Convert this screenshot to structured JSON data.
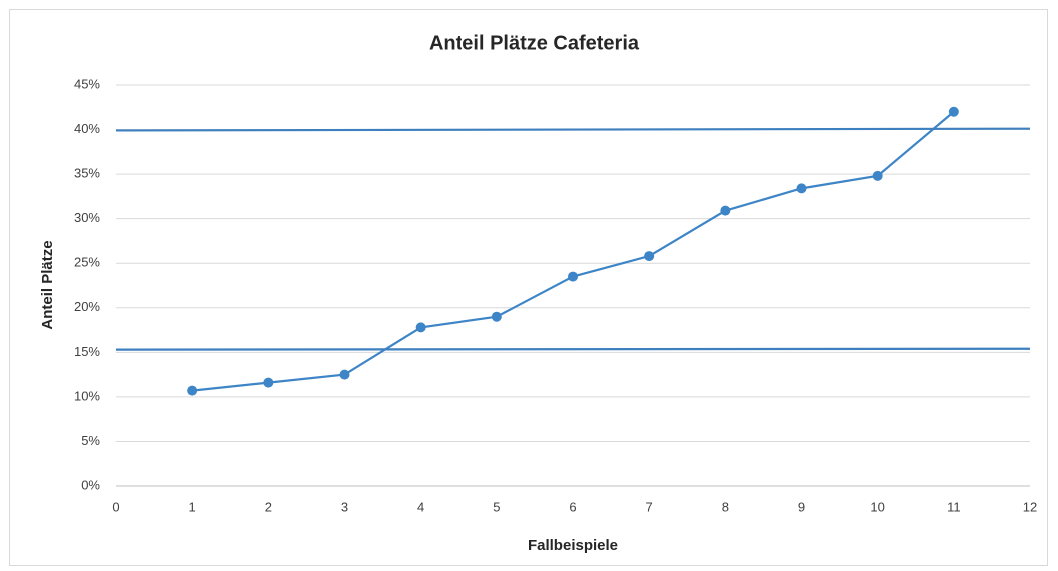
{
  "chart_data": {
    "type": "line",
    "title": "Anteil Plätze Cafeteria",
    "xlabel": "Fallbeispiele",
    "ylabel": "Anteil Plätze",
    "series": [
      {
        "color": "#3d85c6",
        "marker": true,
        "x": [
          1,
          2,
          3,
          4,
          5,
          6,
          7,
          8,
          9,
          10,
          11
        ],
        "values": [
          10.7,
          11.6,
          12.5,
          17.8,
          19.0,
          23.5,
          25.8,
          30.9,
          33.4,
          34.8,
          42.0
        ]
      },
      {
        "color": "#3d7fbf",
        "marker": false,
        "x": [
          0,
          12
        ],
        "values": [
          39.9,
          40.1
        ]
      },
      {
        "color": "#3d7fbf",
        "marker": false,
        "x": [
          0,
          12
        ],
        "values": [
          15.3,
          15.4
        ]
      }
    ],
    "xlim": [
      0,
      12
    ],
    "xticks": [
      0,
      1,
      2,
      3,
      4,
      5,
      6,
      7,
      8,
      9,
      10,
      11,
      12
    ],
    "ylim": [
      0,
      45
    ],
    "yticks": [
      {
        "value": 0,
        "label": "0%"
      },
      {
        "value": 5,
        "label": "5%"
      },
      {
        "value": 10,
        "label": "10%"
      },
      {
        "value": 15,
        "label": "15%"
      },
      {
        "value": 20,
        "label": "20%"
      },
      {
        "value": 25,
        "label": "25%"
      },
      {
        "value": 30,
        "label": "30%"
      },
      {
        "value": 35,
        "label": "35%"
      },
      {
        "value": 40,
        "label": "40%"
      },
      {
        "value": 45,
        "label": "45%"
      }
    ],
    "grid": true
  }
}
